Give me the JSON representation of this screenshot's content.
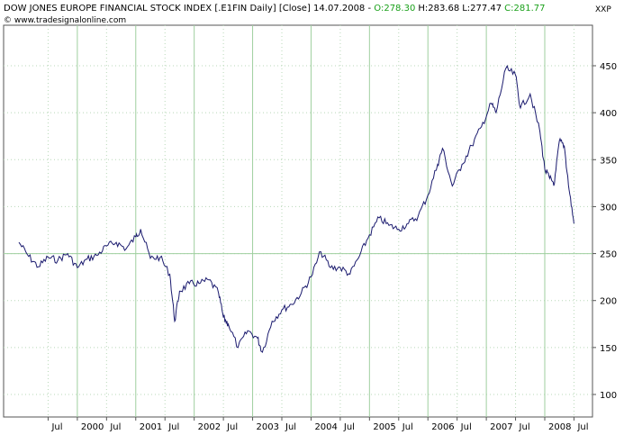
{
  "header": {
    "title_prefix": "DOW JONES EUROPE FINANCIAL STOCK INDEX [.E1FIN  Daily] [Close] 14.07.2008 - ",
    "open": "O:278.30",
    "high": "H:283.68",
    "low": "L:277.47",
    "close": "C:281.77",
    "copyright": "© www.tradesignalonline.com",
    "currency": "XXP"
  },
  "colors": {
    "line": "#1a1a6e",
    "green_text": "#19a019",
    "grid_major": "#9fcf9f",
    "grid_minor": "#b8d8b8",
    "axis": "#555555"
  },
  "chart_data": {
    "type": "line",
    "title": "DOW JONES EUROPE FINANCIAL STOCK INDEX [.E1FIN  Daily] [Close]",
    "ylim": [
      100,
      460
    ],
    "y_ticks": [
      100,
      150,
      200,
      250,
      300,
      350,
      400,
      450
    ],
    "grid": true,
    "x_tick_labels": [
      "Jul",
      "2000",
      "Jul",
      "2001",
      "Jul",
      "2002",
      "Jul",
      "2003",
      "Jul",
      "2004",
      "Jul",
      "2005",
      "Jul",
      "2006",
      "Jul",
      "2007",
      "Jul",
      "2008",
      "Jul"
    ],
    "series": [
      {
        "values": [
          {
            "x": "1999-01",
            "y": 262
          },
          {
            "x": "1999-03",
            "y": 247
          },
          {
            "x": "1999-05",
            "y": 236
          },
          {
            "x": "1999-07",
            "y": 246
          },
          {
            "x": "1999-09",
            "y": 243
          },
          {
            "x": "1999-11",
            "y": 250
          },
          {
            "x": "2000-01",
            "y": 235
          },
          {
            "x": "2000-03",
            "y": 244
          },
          {
            "x": "2000-05",
            "y": 248
          },
          {
            "x": "2000-07",
            "y": 258
          },
          {
            "x": "2000-09",
            "y": 262
          },
          {
            "x": "2000-11",
            "y": 255
          },
          {
            "x": "2001-01",
            "y": 268
          },
          {
            "x": "2001-02",
            "y": 276
          },
          {
            "x": "2001-04",
            "y": 245
          },
          {
            "x": "2001-06",
            "y": 246
          },
          {
            "x": "2001-08",
            "y": 228
          },
          {
            "x": "2001-09",
            "y": 178
          },
          {
            "x": "2001-10",
            "y": 210
          },
          {
            "x": "2001-12",
            "y": 218
          },
          {
            "x": "2002-02",
            "y": 218
          },
          {
            "x": "2002-04",
            "y": 222
          },
          {
            "x": "2002-06",
            "y": 208
          },
          {
            "x": "2002-07",
            "y": 182
          },
          {
            "x": "2002-08",
            "y": 175
          },
          {
            "x": "2002-10",
            "y": 150
          },
          {
            "x": "2002-12",
            "y": 168
          },
          {
            "x": "2003-02",
            "y": 160
          },
          {
            "x": "2003-03",
            "y": 145
          },
          {
            "x": "2003-05",
            "y": 178
          },
          {
            "x": "2003-07",
            "y": 190
          },
          {
            "x": "2003-09",
            "y": 196
          },
          {
            "x": "2003-11",
            "y": 208
          },
          {
            "x": "2004-01",
            "y": 225
          },
          {
            "x": "2004-03",
            "y": 252
          },
          {
            "x": "2004-05",
            "y": 235
          },
          {
            "x": "2004-07",
            "y": 235
          },
          {
            "x": "2004-09",
            "y": 228
          },
          {
            "x": "2004-11",
            "y": 248
          },
          {
            "x": "2005-01",
            "y": 270
          },
          {
            "x": "2005-03",
            "y": 288
          },
          {
            "x": "2005-05",
            "y": 280
          },
          {
            "x": "2005-07",
            "y": 276
          },
          {
            "x": "2005-09",
            "y": 282
          },
          {
            "x": "2005-11",
            "y": 290
          },
          {
            "x": "2006-01",
            "y": 312
          },
          {
            "x": "2006-03",
            "y": 345
          },
          {
            "x": "2006-04",
            "y": 362
          },
          {
            "x": "2006-06",
            "y": 322
          },
          {
            "x": "2006-08",
            "y": 345
          },
          {
            "x": "2006-10",
            "y": 365
          },
          {
            "x": "2006-12",
            "y": 385
          },
          {
            "x": "2007-02",
            "y": 410
          },
          {
            "x": "2007-03",
            "y": 400
          },
          {
            "x": "2007-05",
            "y": 447
          },
          {
            "x": "2007-07",
            "y": 440
          },
          {
            "x": "2007-08",
            "y": 405
          },
          {
            "x": "2007-10",
            "y": 420
          },
          {
            "x": "2007-12",
            "y": 380
          },
          {
            "x": "2008-01",
            "y": 340
          },
          {
            "x": "2008-02",
            "y": 330
          },
          {
            "x": "2008-03",
            "y": 325
          },
          {
            "x": "2008-04",
            "y": 370
          },
          {
            "x": "2008-05",
            "y": 365
          },
          {
            "x": "2008-06",
            "y": 318
          },
          {
            "x": "2008-07",
            "y": 282
          }
        ]
      }
    ]
  }
}
